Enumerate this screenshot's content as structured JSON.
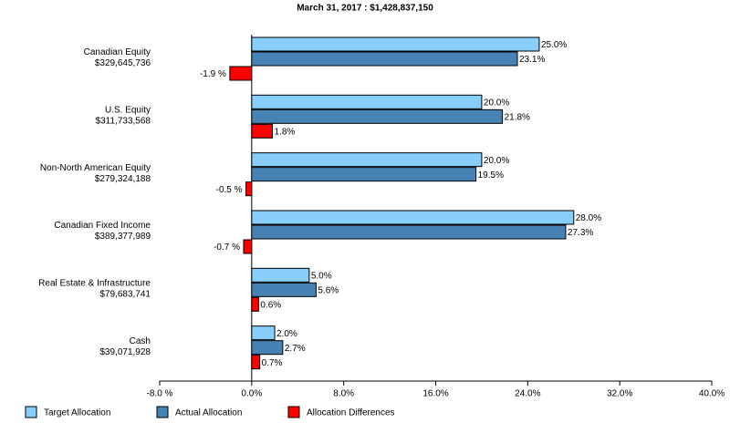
{
  "chart_data": {
    "type": "hbar",
    "title": "March 31, 2017 : $1,428,837,150",
    "categories": [
      "Canadian Equity",
      "U.S. Equity",
      "Non-North American Equity",
      "Canadian Fixed Income",
      "Real Estate & Infrastructure",
      "Cash"
    ],
    "category_amounts": [
      "$329,645,736",
      "$311,733,568",
      "$279,324,188",
      "$389,377,989",
      "$79,683,741",
      "$39,071,928"
    ],
    "series": [
      {
        "name": "Target Allocation",
        "color": "#87cefa",
        "values": [
          25.0,
          20.0,
          20.0,
          28.0,
          5.0,
          2.0
        ],
        "value_labels": [
          "25.0%",
          "20.0%",
          "20.0%",
          "28.0%",
          "5.0%",
          "2.0%"
        ]
      },
      {
        "name": "Actual Allocation",
        "color": "#4682b4",
        "values": [
          23.1,
          21.8,
          19.5,
          27.3,
          5.6,
          2.7
        ],
        "value_labels": [
          "23.1%",
          "21.8%",
          "19.5%",
          "27.3%",
          "5.6%",
          "2.7%"
        ]
      },
      {
        "name": "Allocation Differences",
        "color": "#ff0000",
        "values": [
          -1.9,
          1.8,
          -0.5,
          -0.7,
          0.6,
          0.7
        ],
        "value_labels": [
          "-1.9 %",
          "1.8%",
          "-0.5 %",
          "-0.7 %",
          "0.6%",
          "0.7%"
        ]
      }
    ],
    "xlim": [
      -8,
      40
    ],
    "xticks": [
      {
        "value": -8,
        "label": "-8.0 %"
      },
      {
        "value": 0,
        "label": "0.0%"
      },
      {
        "value": 8,
        "label": "8.0%"
      },
      {
        "value": 16,
        "label": "16.0%"
      },
      {
        "value": 24,
        "label": "24.0%"
      },
      {
        "value": 32,
        "label": "32.0%"
      },
      {
        "value": 40,
        "label": "40.0%"
      }
    ],
    "grid": false,
    "legend": "bottom"
  }
}
